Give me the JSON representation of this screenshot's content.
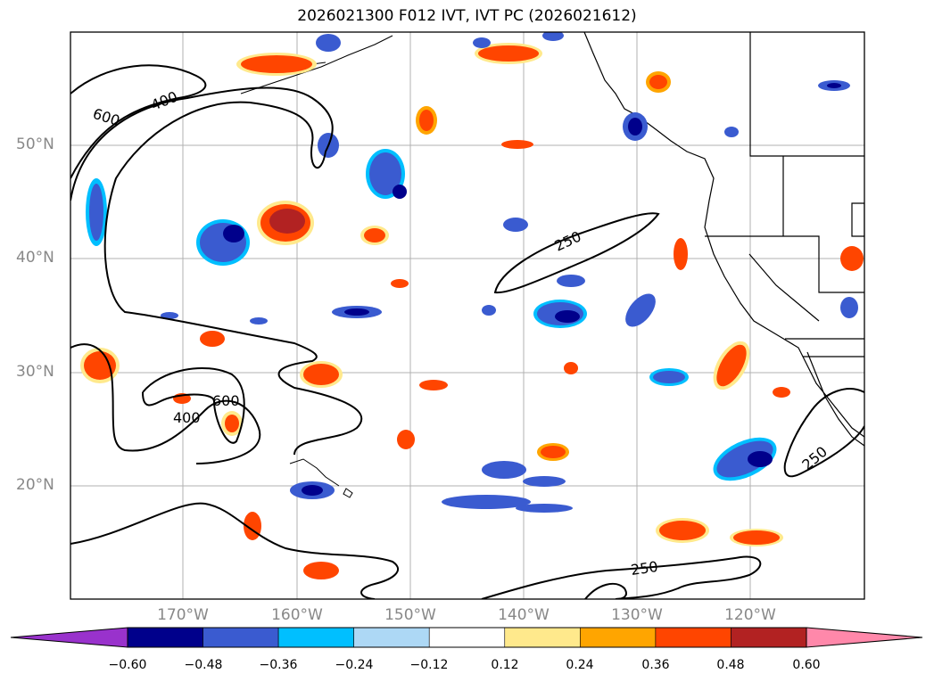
{
  "title": "2026021300 F012 IVT, IVT PC (2026021612)",
  "map": {
    "lat_labels": [
      "50°N",
      "40°N",
      "30°N",
      "20°N"
    ],
    "lon_labels": [
      "170°W",
      "160°W",
      "150°W",
      "140°W",
      "130°W",
      "120°W"
    ],
    "contour_labels": [
      "600",
      "400",
      "600",
      "400",
      "250",
      "250",
      "250"
    ],
    "gridlines": true
  },
  "colorbar": {
    "ticks": [
      "−0.60",
      "−0.48",
      "−0.36",
      "−0.24",
      "−0.12",
      "0.12",
      "0.24",
      "0.36",
      "0.48",
      "0.60"
    ],
    "colors": [
      "#9932cc",
      "#00008b",
      "#3a5bd0",
      "#00bfff",
      "#add8f5",
      "#ffffff",
      "#ffe98c",
      "#ffa500",
      "#ff4500",
      "#b22222",
      "#ff88aa"
    ],
    "extend": "both"
  }
}
